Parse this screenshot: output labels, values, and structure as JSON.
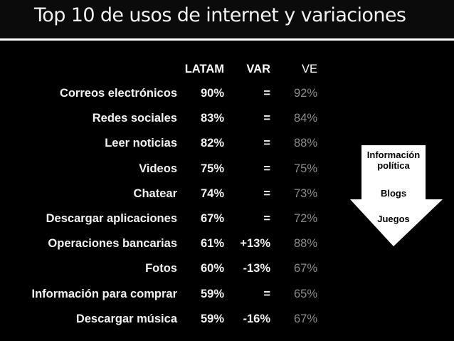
{
  "title": "Top 10 de usos de internet y variaciones",
  "columns": {
    "latam": "LATAM",
    "var": "VAR",
    "ve": "VE"
  },
  "rows": [
    {
      "label": "Correos electrónicos",
      "latam": "90%",
      "var": "=",
      "ve": "92%"
    },
    {
      "label": "Redes sociales",
      "latam": "83%",
      "var": "=",
      "ve": "84%"
    },
    {
      "label": "Leer noticias",
      "latam": "82%",
      "var": "=",
      "ve": "88%"
    },
    {
      "label": "Videos",
      "latam": "75%",
      "var": "=",
      "ve": "75%"
    },
    {
      "label": "Chatear",
      "latam": "74%",
      "var": "=",
      "ve": "73%"
    },
    {
      "label": "Descargar aplicaciones",
      "latam": "67%",
      "var": "=",
      "ve": "72%"
    },
    {
      "label": "Operaciones bancarias",
      "latam": "61%",
      "var": "+13%",
      "ve": "88%"
    },
    {
      "label": "Fotos",
      "latam": "60%",
      "var": "-13%",
      "ve": "67%"
    },
    {
      "label": "Información para comprar",
      "latam": "59%",
      "var": "=",
      "ve": "65%"
    },
    {
      "label": "Descargar música",
      "latam": "59%",
      "var": "-16%",
      "ve": "67%"
    }
  ],
  "arrow": {
    "line1": "Información",
    "line2": "política",
    "item2": "Blogs",
    "item3": "Juegos"
  },
  "colors": {
    "background": "#000000",
    "title_bar": "#0b0b0b",
    "text": "#f2f2f2",
    "ve_column": "#8c8c8c",
    "arrow_fill": "#ffffff"
  }
}
